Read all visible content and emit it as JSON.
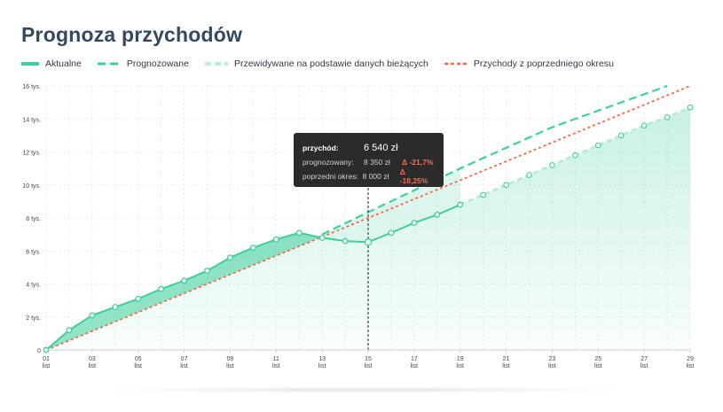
{
  "page": {
    "title": "Prognoza przychodów"
  },
  "legend": [
    {
      "label": "Aktualne",
      "style": "solid",
      "color": "#3fcf9b"
    },
    {
      "label": "Prognozowane",
      "style": "dashed",
      "color": "#3fcf9b"
    },
    {
      "label": "Przewidywane na podstawie danych bieżących",
      "style": "dashed-light",
      "color": "#b8ecd6"
    },
    {
      "label": "Przychody z poprzedniego okresu",
      "style": "dotted",
      "color": "#f26b4b"
    }
  ],
  "tooltip": {
    "title_label": "przychód:",
    "title_value": "6 540 zł",
    "rows": [
      {
        "label": "prognozowany:",
        "value": "8 350 zł",
        "delta": "Δ -21,7%"
      },
      {
        "label": "poprzedni okres:",
        "value": "8 000 zł",
        "delta": "Δ -18,25%"
      }
    ]
  },
  "chart_data": {
    "type": "line",
    "x_tick_labels": [
      "01",
      "03",
      "05",
      "07",
      "09",
      "11",
      "13",
      "15",
      "17",
      "19",
      "21",
      "23",
      "25",
      "27",
      "29"
    ],
    "x_tick_sublabel": "list",
    "y_ticks": [
      0,
      2000,
      4000,
      6000,
      8000,
      10000,
      12000,
      14000,
      16000
    ],
    "y_tick_labels": [
      "0",
      "2 tys.",
      "4 tys.",
      "6 tys.",
      "8 tys.",
      "10 tys.",
      "12 tys.",
      "14 tys.",
      "16 tys."
    ],
    "xlim": [
      1,
      29
    ],
    "ylim": [
      0,
      16000
    ],
    "grid": true,
    "highlight_day": 15,
    "series": [
      {
        "name": "Aktualne",
        "x": [
          1,
          2,
          3,
          4,
          5,
          6,
          7,
          8,
          9,
          10,
          11,
          12,
          13,
          14,
          15,
          16,
          17,
          18,
          19
        ],
        "values": [
          0,
          1200,
          2100,
          2600,
          3100,
          3700,
          4200,
          4800,
          5600,
          6200,
          6700,
          7100,
          6800,
          6600,
          6540,
          7100,
          7700,
          8200,
          8800
        ]
      },
      {
        "name": "Prognozowane",
        "x": [
          1,
          13,
          15,
          19,
          23,
          28
        ],
        "values": [
          0,
          7000,
          8350,
          11000,
          13500,
          16000
        ]
      },
      {
        "name": "Przewidywane na podstawie danych bieżących",
        "x": [
          19,
          20,
          21,
          22,
          23,
          24,
          25,
          26,
          27,
          28,
          29
        ],
        "values": [
          8800,
          9400,
          10000,
          10600,
          11200,
          11800,
          12400,
          13000,
          13600,
          14100,
          14700
        ]
      },
      {
        "name": "Przychody z poprzedniego okresu",
        "x": [
          1,
          29
        ],
        "values": [
          0,
          16000
        ]
      }
    ]
  }
}
